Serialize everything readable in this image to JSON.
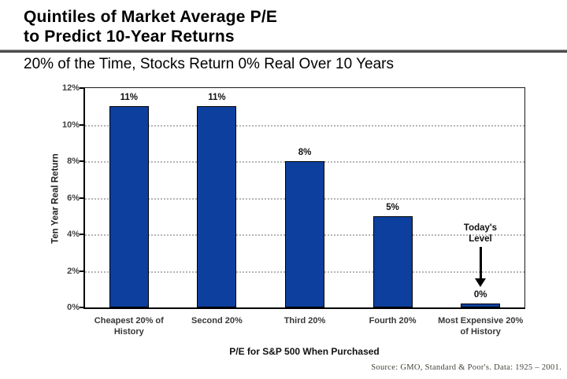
{
  "header": {
    "title_line1": "Quintiles of Market Average P/E",
    "title_line2": "to Predict 10-Year Returns",
    "subtitle": "20% of the Time, Stocks Return 0% Real Over 10 Years"
  },
  "chart_data": {
    "type": "bar",
    "title": "Quintiles of Market Average P/E to Predict 10-Year Returns",
    "categories": [
      "Cheapest 20% of History",
      "Second 20%",
      "Third 20%",
      "Fourth 20%",
      "Most Expensive 20% of History"
    ],
    "category_label_lines": [
      [
        "Cheapest 20% of",
        "History"
      ],
      [
        "Second 20%"
      ],
      [
        "Third 20%"
      ],
      [
        "Fourth 20%"
      ],
      [
        "Most Expensive 20%",
        "of History"
      ]
    ],
    "values": [
      11,
      11,
      8,
      5,
      0.2
    ],
    "bar_labels": [
      "11%",
      "11%",
      "8%",
      "5%",
      "0%"
    ],
    "xlabel": "P/E for S&P 500 When Purchased",
    "ylabel": "Ten Year Real Return",
    "ylim": [
      0,
      12
    ],
    "yticks": [
      0,
      2,
      4,
      6,
      8,
      10,
      12
    ],
    "ytick_labels": [
      "0%",
      "2%",
      "4%",
      "6%",
      "8%",
      "10%",
      "12%"
    ],
    "grid": "horizontal-dotted",
    "legend": "none",
    "bar_color": "#0d3f9e",
    "bar_border_color": "#000000",
    "grid_color": "#b5b5b5"
  },
  "annotation": {
    "line1": "Today's",
    "line2": "Level",
    "points_to_category": "Most Expensive 20% of History"
  },
  "source": "Source:  GMO, Standard & Poor's.  Data:  1925 – 2001."
}
